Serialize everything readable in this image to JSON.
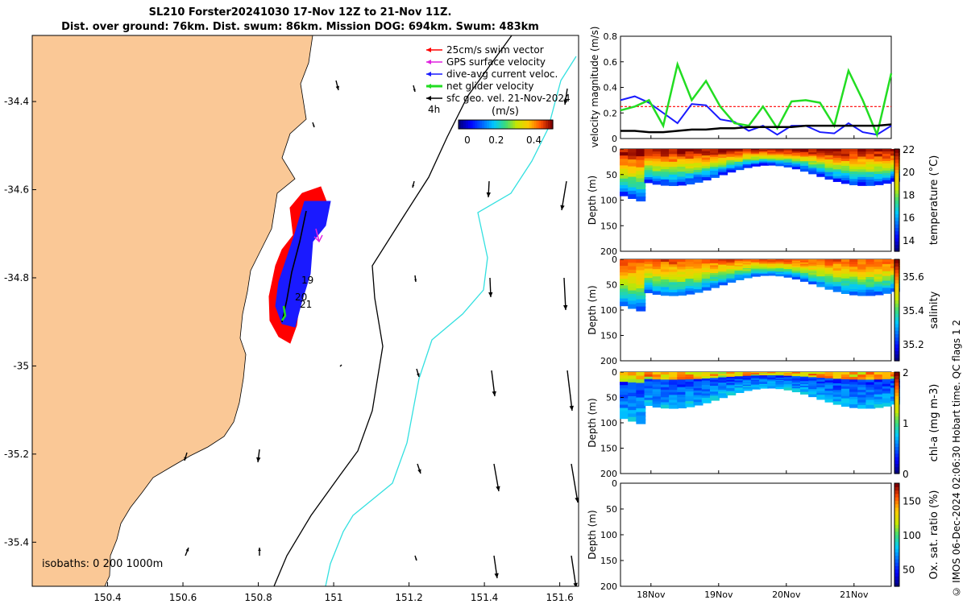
{
  "title_line1": "SL210 Forster20241030 17-Nov 12Z to 21-Nov 11Z.",
  "title_line2": "Dist. over ground: 76km. Dist. swum: 86km. Mission DOG: 694km. Swum: 483km",
  "footer": "© IMOS 06-Dec-2024 02:06:30 Hobart time. QC flags 1  2",
  "colors": {
    "land": "#fac896",
    "swim": "#ff0000",
    "gps": "#e020e0",
    "current": "#1a1aff",
    "net": "#22dd22",
    "geo": "#000000",
    "isobath200": "#000000",
    "isobath1000": "#33e0e0"
  },
  "chart_data": [
    {
      "type": "map",
      "x_ticks": [
        "150.4",
        "150.6",
        "150.8",
        "151",
        "151.2",
        "151.4",
        "151.6"
      ],
      "y_ticks": [
        "-34.4",
        "-34.6",
        "-34.8",
        "-35",
        "-35.2",
        "-35.4"
      ],
      "xlim": [
        150.2,
        151.65
      ],
      "ylim": [
        -35.5,
        -34.25
      ],
      "legend": [
        "25cm/s swim vector",
        "GPS surface velocity",
        "dive-avg current veloc.",
        "net glider velocity",
        "sfc geo. vel. 21-Nov-2024"
      ],
      "time_label": "4h",
      "colorbar": {
        "label": "(m/s)",
        "ticks": [
          "0",
          "0.2",
          "0.4"
        ],
        "range": [
          0,
          0.5
        ]
      },
      "isobaths_label": "isobaths: 0   200  1000m",
      "track_labels": [
        "19",
        "20",
        "21"
      ]
    },
    {
      "type": "line",
      "ylabel": "velocity magnitude (m/s)",
      "ylim": [
        0,
        0.8
      ],
      "y_ticks": [
        "0",
        "0.2",
        "0.4",
        "0.6",
        "0.8"
      ],
      "x_ticks": [
        "18Nov",
        "19Nov",
        "20Nov",
        "21Nov"
      ],
      "series": [
        {
          "name": "swim vector reference",
          "values": [
            0.25,
            0.25,
            0.25,
            0.25,
            0.25,
            0.25,
            0.25,
            0.25,
            0.25,
            0.25
          ]
        },
        {
          "name": "dive-avg current veloc.",
          "values": [
            0.3,
            0.33,
            0.28,
            0.2,
            0.12,
            0.27,
            0.26,
            0.15,
            0.13,
            0.06,
            0.1,
            0.03,
            0.1,
            0.1,
            0.05,
            0.04,
            0.12,
            0.05,
            0.03,
            0.1
          ]
        },
        {
          "name": "net glider velocity",
          "values": [
            0.22,
            0.25,
            0.3,
            0.1,
            0.58,
            0.3,
            0.45,
            0.25,
            0.12,
            0.1,
            0.25,
            0.08,
            0.29,
            0.3,
            0.28,
            0.1,
            0.53,
            0.3,
            0.03,
            0.51
          ]
        },
        {
          "name": "sfc geo. vel.",
          "values": [
            0.06,
            0.06,
            0.05,
            0.05,
            0.06,
            0.07,
            0.07,
            0.08,
            0.08,
            0.09,
            0.09,
            0.09,
            0.09,
            0.1,
            0.1,
            0.1,
            0.1,
            0.1,
            0.1,
            0.11
          ]
        }
      ]
    },
    {
      "type": "heatmap",
      "ylabel": "Depth (m)",
      "ylim": [
        200,
        0
      ],
      "y_ticks": [
        "0",
        "50",
        "100",
        "150",
        "200"
      ],
      "colorbar_label": "temperature (°C)",
      "colorbar_ticks": [
        "14",
        "16",
        "18",
        "20",
        "22"
      ],
      "crange": [
        13,
        22
      ]
    },
    {
      "type": "heatmap",
      "ylabel": "Depth (m)",
      "ylim": [
        200,
        0
      ],
      "y_ticks": [
        "0",
        "50",
        "100",
        "150",
        "200"
      ],
      "colorbar_label": "salinity",
      "colorbar_ticks": [
        "35.2",
        "35.4",
        "35.6"
      ],
      "crange": [
        35.1,
        35.7
      ]
    },
    {
      "type": "heatmap",
      "ylabel": "Depth (m)",
      "ylim": [
        200,
        0
      ],
      "y_ticks": [
        "0",
        "50",
        "100",
        "150",
        "200"
      ],
      "colorbar_label": "chl-a (mg m-3)",
      "colorbar_ticks": [
        "0",
        "1",
        "2"
      ],
      "crange": [
        0,
        2
      ]
    },
    {
      "type": "heatmap",
      "ylabel": "Depth (m)",
      "ylim": [
        200,
        0
      ],
      "y_ticks": [
        "0",
        "50",
        "100",
        "150",
        "200"
      ],
      "colorbar_label": "Ox. sat. ratio (%)",
      "colorbar_ticks": [
        "50",
        "100",
        "150"
      ],
      "crange": [
        25,
        175
      ],
      "x_ticks": [
        "18Nov",
        "19Nov",
        "20Nov",
        "21Nov"
      ]
    }
  ]
}
